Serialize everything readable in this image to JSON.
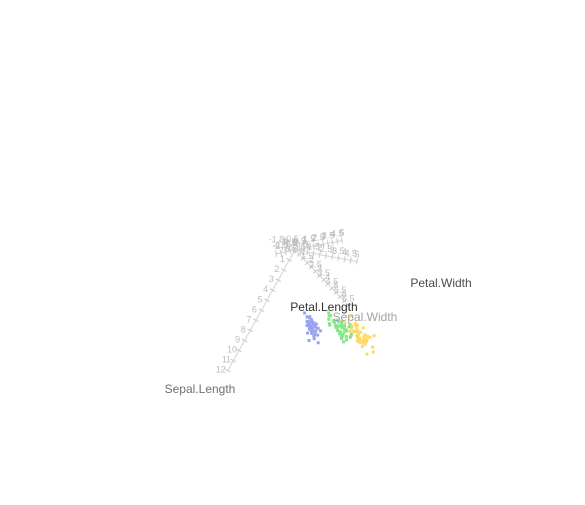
{
  "chart_data": {
    "type": "scatter",
    "projection": "3d",
    "title": "",
    "axes": {
      "x": {
        "label": "Sepal.Length",
        "ticks": [
          "0",
          "1",
          "2",
          "3",
          "4",
          "5",
          "6",
          "7",
          "8",
          "9",
          "10",
          "11",
          "12"
        ]
      },
      "y": {
        "label": "Sepal.Width",
        "ticks": [
          "-0.5",
          "0",
          "0.5",
          "1",
          "1.5",
          "2",
          "2.5",
          "3",
          "3.5",
          "4",
          "4.5",
          "5",
          "5.5",
          "6",
          "6.5"
        ]
      },
      "z": {
        "label": "Petal.Length",
        "ticks": [
          "-2",
          "-1.5",
          "-1",
          "-0.5",
          "0",
          "0.5",
          "1",
          "1.5",
          "2",
          "2.5",
          "3",
          "3.5",
          "4",
          "4.5",
          "5"
        ]
      },
      "w": {
        "label": "Petal.Width",
        "ticks": [
          "-1.5",
          "-1",
          "-0.5",
          "0",
          "0.5",
          "1",
          "1.5",
          "2",
          "2.5",
          "3",
          "3.5",
          "4",
          "4.5",
          "5"
        ]
      }
    },
    "series": [
      {
        "color": "#9aa3f0",
        "points": [
          [
            5.1,
            3.5,
            1.4,
            0.2
          ],
          [
            4.9,
            3.0,
            1.4,
            0.2
          ],
          [
            4.7,
            3.2,
            1.3,
            0.2
          ],
          [
            4.6,
            3.1,
            1.5,
            0.2
          ],
          [
            5.0,
            3.6,
            1.4,
            0.2
          ],
          [
            5.4,
            3.9,
            1.7,
            0.4
          ],
          [
            4.6,
            3.4,
            1.4,
            0.3
          ],
          [
            5.0,
            3.4,
            1.5,
            0.2
          ],
          [
            4.4,
            2.9,
            1.4,
            0.2
          ],
          [
            4.9,
            3.1,
            1.5,
            0.1
          ],
          [
            5.4,
            3.7,
            1.5,
            0.2
          ],
          [
            4.8,
            3.4,
            1.6,
            0.2
          ],
          [
            4.8,
            3.0,
            1.4,
            0.1
          ],
          [
            4.3,
            3.0,
            1.1,
            0.1
          ],
          [
            5.8,
            4.0,
            1.2,
            0.2
          ],
          [
            5.7,
            4.4,
            1.5,
            0.4
          ],
          [
            5.4,
            3.9,
            1.3,
            0.4
          ],
          [
            5.1,
            3.5,
            1.4,
            0.3
          ],
          [
            5.7,
            3.8,
            1.7,
            0.3
          ],
          [
            5.1,
            3.8,
            1.5,
            0.3
          ],
          [
            5.4,
            3.4,
            1.7,
            0.2
          ],
          [
            5.1,
            3.7,
            1.5,
            0.4
          ],
          [
            4.6,
            3.6,
            1.0,
            0.2
          ],
          [
            5.1,
            3.3,
            1.7,
            0.5
          ],
          [
            4.8,
            3.4,
            1.9,
            0.2
          ],
          [
            5.0,
            3.0,
            1.6,
            0.2
          ],
          [
            5.0,
            3.4,
            1.6,
            0.4
          ],
          [
            5.2,
            3.5,
            1.5,
            0.2
          ],
          [
            5.2,
            3.4,
            1.4,
            0.2
          ],
          [
            4.7,
            3.2,
            1.6,
            0.2
          ],
          [
            4.8,
            3.1,
            1.6,
            0.2
          ],
          [
            5.4,
            3.4,
            1.5,
            0.4
          ],
          [
            5.2,
            4.1,
            1.5,
            0.1
          ],
          [
            5.5,
            4.2,
            1.4,
            0.2
          ],
          [
            4.9,
            3.1,
            1.5,
            0.2
          ],
          [
            5.0,
            3.2,
            1.2,
            0.2
          ],
          [
            5.5,
            3.5,
            1.3,
            0.2
          ],
          [
            4.4,
            3.0,
            1.3,
            0.2
          ],
          [
            5.1,
            3.4,
            1.5,
            0.2
          ],
          [
            5.0,
            3.5,
            1.3,
            0.3
          ],
          [
            4.5,
            2.3,
            1.3,
            0.3
          ],
          [
            4.4,
            3.2,
            1.3,
            0.2
          ],
          [
            5.0,
            3.5,
            1.6,
            0.6
          ],
          [
            5.1,
            3.8,
            1.9,
            0.4
          ],
          [
            4.8,
            3.0,
            1.4,
            0.3
          ],
          [
            5.1,
            3.8,
            1.6,
            0.2
          ],
          [
            4.6,
            3.2,
            1.4,
            0.2
          ],
          [
            5.3,
            3.7,
            1.5,
            0.2
          ],
          [
            5.0,
            3.3,
            1.4,
            0.2
          ]
        ]
      },
      {
        "color": "#86e68a",
        "points": [
          [
            7.0,
            3.2,
            4.7,
            1.4
          ],
          [
            6.4,
            3.2,
            4.5,
            1.5
          ],
          [
            6.9,
            3.1,
            4.9,
            1.5
          ],
          [
            5.5,
            2.3,
            4.0,
            1.3
          ],
          [
            6.5,
            2.8,
            4.6,
            1.5
          ],
          [
            5.7,
            2.8,
            4.5,
            1.3
          ],
          [
            6.3,
            3.3,
            4.7,
            1.6
          ],
          [
            4.9,
            2.4,
            3.3,
            1.0
          ],
          [
            6.6,
            2.9,
            4.6,
            1.3
          ],
          [
            5.2,
            2.7,
            3.9,
            1.4
          ],
          [
            5.0,
            2.0,
            3.5,
            1.0
          ],
          [
            5.9,
            3.0,
            4.2,
            1.5
          ],
          [
            6.0,
            2.2,
            4.0,
            1.0
          ],
          [
            6.1,
            2.9,
            4.7,
            1.4
          ],
          [
            5.6,
            2.9,
            3.6,
            1.3
          ],
          [
            6.7,
            3.1,
            4.4,
            1.4
          ],
          [
            5.6,
            3.0,
            4.5,
            1.5
          ],
          [
            5.8,
            2.7,
            4.1,
            1.0
          ],
          [
            6.2,
            2.2,
            4.5,
            1.5
          ],
          [
            5.6,
            2.5,
            3.9,
            1.1
          ],
          [
            5.9,
            3.2,
            4.8,
            1.8
          ],
          [
            6.1,
            2.8,
            4.0,
            1.3
          ],
          [
            6.3,
            2.5,
            4.9,
            1.5
          ],
          [
            6.4,
            2.9,
            4.3,
            1.3
          ],
          [
            6.6,
            3.0,
            4.4,
            1.4
          ],
          [
            6.8,
            2.8,
            4.8,
            1.4
          ],
          [
            6.7,
            3.0,
            5.0,
            1.7
          ],
          [
            6.0,
            2.9,
            4.5,
            1.5
          ],
          [
            5.7,
            2.6,
            3.5,
            1.0
          ],
          [
            5.5,
            2.4,
            3.8,
            1.1
          ],
          [
            5.8,
            2.7,
            3.9,
            1.2
          ],
          [
            6.0,
            2.7,
            5.1,
            1.6
          ],
          [
            5.4,
            3.0,
            4.5,
            1.5
          ],
          [
            6.0,
            3.4,
            4.5,
            1.6
          ],
          [
            6.3,
            2.3,
            4.4,
            1.3
          ],
          [
            5.5,
            2.5,
            4.0,
            1.3
          ],
          [
            5.5,
            2.6,
            4.4,
            1.2
          ],
          [
            6.1,
            3.0,
            4.6,
            1.4
          ],
          [
            5.8,
            2.6,
            4.0,
            1.2
          ],
          [
            5.0,
            2.3,
            3.3,
            1.0
          ],
          [
            5.6,
            2.7,
            4.2,
            1.3
          ],
          [
            5.7,
            3.0,
            4.2,
            1.2
          ],
          [
            6.2,
            2.9,
            4.3,
            1.3
          ],
          [
            5.1,
            2.5,
            3.0,
            1.1
          ],
          [
            5.7,
            2.8,
            4.1,
            1.3
          ]
        ]
      },
      {
        "color": "#ffd966",
        "points": [
          [
            6.3,
            3.3,
            6.0,
            2.5
          ],
          [
            5.8,
            2.7,
            5.1,
            1.9
          ],
          [
            7.1,
            3.0,
            5.9,
            2.1
          ],
          [
            6.3,
            2.9,
            5.6,
            1.8
          ],
          [
            6.5,
            3.0,
            5.8,
            2.2
          ],
          [
            7.6,
            3.0,
            6.6,
            2.1
          ],
          [
            4.9,
            2.5,
            4.5,
            1.7
          ],
          [
            7.3,
            2.9,
            6.3,
            1.8
          ],
          [
            6.7,
            2.5,
            5.8,
            1.8
          ],
          [
            7.2,
            3.6,
            6.1,
            2.5
          ],
          [
            6.5,
            3.2,
            5.1,
            2.0
          ],
          [
            6.4,
            2.7,
            5.3,
            1.9
          ],
          [
            6.8,
            3.0,
            5.5,
            2.1
          ],
          [
            5.7,
            2.5,
            5.0,
            2.0
          ],
          [
            5.8,
            2.8,
            5.1,
            2.4
          ],
          [
            6.4,
            3.2,
            5.3,
            2.3
          ],
          [
            7.7,
            3.8,
            6.7,
            2.2
          ],
          [
            7.7,
            2.6,
            6.9,
            2.3
          ],
          [
            6.0,
            2.2,
            5.0,
            1.5
          ],
          [
            6.9,
            3.2,
            5.7,
            2.3
          ],
          [
            5.6,
            2.8,
            4.9,
            2.0
          ],
          [
            7.7,
            2.8,
            6.7,
            2.0
          ],
          [
            6.3,
            2.7,
            4.9,
            1.8
          ],
          [
            6.7,
            3.3,
            5.7,
            2.1
          ],
          [
            7.2,
            3.2,
            6.0,
            1.8
          ],
          [
            6.2,
            2.8,
            4.8,
            1.8
          ],
          [
            6.1,
            3.0,
            4.9,
            1.8
          ],
          [
            6.4,
            2.8,
            5.6,
            2.1
          ],
          [
            7.4,
            2.8,
            6.1,
            1.9
          ],
          [
            7.9,
            3.8,
            6.4,
            2.0
          ],
          [
            6.3,
            2.8,
            5.1,
            1.5
          ],
          [
            6.1,
            2.6,
            5.6,
            1.4
          ],
          [
            7.7,
            3.0,
            6.1,
            2.3
          ],
          [
            6.3,
            3.4,
            5.6,
            2.4
          ],
          [
            6.4,
            3.1,
            5.5,
            1.8
          ],
          [
            6.0,
            3.0,
            4.8,
            1.8
          ],
          [
            6.9,
            3.1,
            5.4,
            2.1
          ],
          [
            6.7,
            3.1,
            5.6,
            2.4
          ],
          [
            5.8,
            2.7,
            5.1,
            1.9
          ],
          [
            6.8,
            3.2,
            5.9,
            2.3
          ],
          [
            6.7,
            3.0,
            5.2,
            2.3
          ],
          [
            6.5,
            3.0,
            5.2,
            2.0
          ],
          [
            6.2,
            3.4,
            5.4,
            2.3
          ],
          [
            5.9,
            3.0,
            5.1,
            1.8
          ]
        ]
      }
    ]
  }
}
